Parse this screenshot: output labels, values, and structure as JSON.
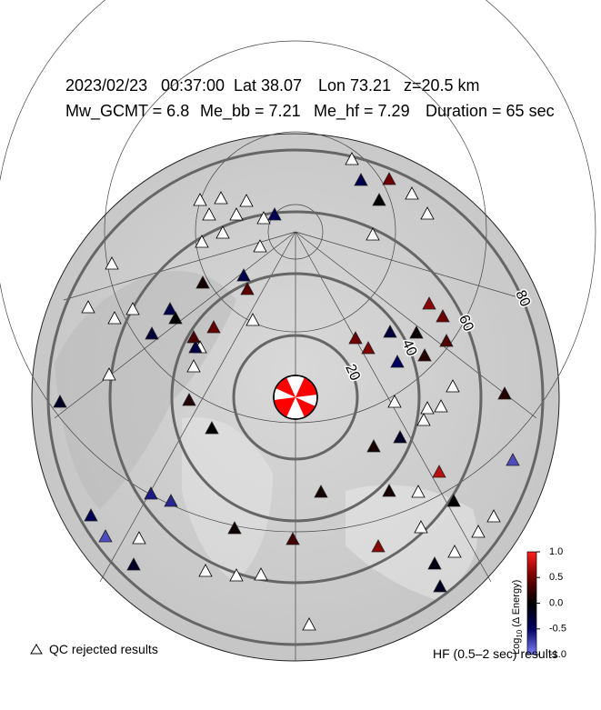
{
  "header": {
    "date": "2023/02/23",
    "time": "00:37:00",
    "lat": "Lat 38.07",
    "lon": "Lon 73.21",
    "depth": "z=20.5 km",
    "mw": "Mw_GCMT = 6.8",
    "me_bb": "Me_bb = 7.21",
    "me_hf": "Me_hf = 7.29",
    "duration": "Duration = 65 sec"
  },
  "rings": [
    20,
    40,
    60,
    80
  ],
  "colorbar": {
    "label_parts": [
      "Log",
      "10",
      "(Δ Energy)"
    ],
    "range": [
      -1,
      1
    ],
    "colors": [
      "#8080ff",
      "#000060",
      "#000000",
      "#700000",
      "#ff2020"
    ],
    "ticks": [
      {
        "value": 1,
        "label": "1.0"
      },
      {
        "value": 0.5,
        "label": "0.5"
      },
      {
        "value": 0,
        "label": "0.0"
      },
      {
        "value": -0.5,
        "label": "-0.5"
      },
      {
        "value": -1,
        "label": "-1.0"
      }
    ]
  },
  "stations": {
    "values": [
      null,
      null,
      null,
      null,
      null,
      null,
      null,
      null,
      null,
      null,
      null,
      null,
      null,
      null,
      null,
      null,
      null,
      null,
      null,
      null,
      null,
      null,
      null,
      null,
      null,
      null,
      null,
      null,
      null,
      null,
      null,
      null,
      null,
      null,
      null,
      null,
      -0.4,
      0.5,
      0,
      -0.45,
      -0.4,
      0.4,
      0.1,
      -0.4,
      0,
      0.45,
      0.35,
      -0.3,
      -0.35,
      -0.2,
      0.15,
      0,
      0.5,
      0.55,
      -0.3,
      0.6,
      0.5,
      0.05,
      0.15,
      0.35,
      -0.5,
      0.15,
      -0.2,
      0.1,
      0.1,
      0.1,
      0.75,
      0,
      -0.8,
      -0.6,
      -0.65,
      -0.45,
      -0.8,
      -0.2,
      0.05,
      0.3,
      0.6,
      -0.1,
      -0.2
    ]
  },
  "legend": {
    "rejected": "QC rejected results",
    "band": "HF (0.5–2 sec) results"
  }
}
